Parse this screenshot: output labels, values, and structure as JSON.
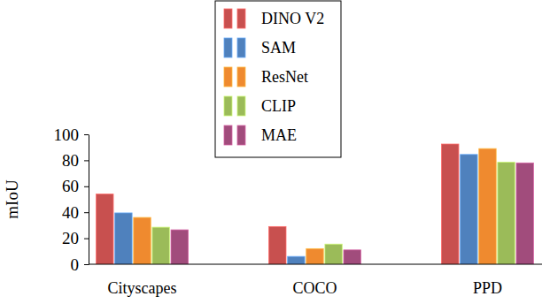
{
  "chart_data": {
    "type": "bar",
    "y_label": "mIoU",
    "categories": [
      "Cityscapes",
      "COCO",
      "PPD"
    ],
    "series": [
      {
        "name": "DINO V2",
        "color": "#c8504f",
        "values": [
          54,
          29,
          92.5
        ]
      },
      {
        "name": "SAM",
        "color": "#4f81bd",
        "values": [
          39.5,
          6,
          84.5
        ]
      },
      {
        "name": "ResNet",
        "color": "#ef8a2f",
        "values": [
          36,
          12,
          89
        ]
      },
      {
        "name": "CLIP",
        "color": "#9bbb59",
        "values": [
          28.5,
          15.5,
          78.5
        ]
      },
      {
        "name": "MAE",
        "color": "#a14c7c",
        "values": [
          26.5,
          11,
          78
        ]
      }
    ],
    "ylim": [
      0,
      100
    ],
    "yticks": [
      0,
      20,
      40,
      60,
      80,
      100
    ],
    "legend": "top",
    "grid": false
  }
}
